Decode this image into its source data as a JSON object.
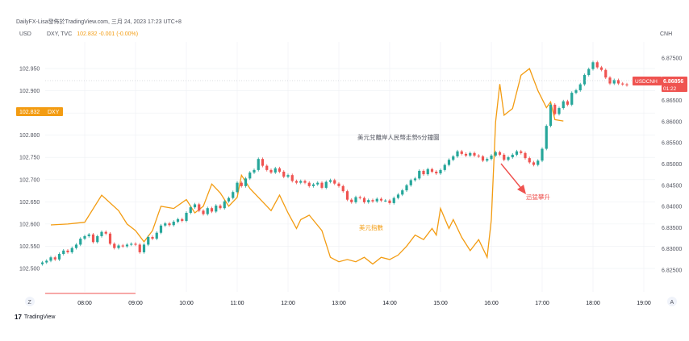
{
  "header": {
    "source_text": "DailyFX-Lisa發佈於TradingView.com, 三月 24, 2023 17:23 UTC+8"
  },
  "left_axis_unit": "USD",
  "right_axis_unit": "CNH",
  "legend": {
    "symbol": "DXY, TVC",
    "value_text": "102.832 -0.001 (-0.00%)"
  },
  "left_price_tag": {
    "value": "102.832",
    "label": "DXY",
    "color": "#f39c12"
  },
  "right_price_tag": {
    "label": "USDCNH",
    "value": "6.86856",
    "countdown": "01:22",
    "color": "#ef5350"
  },
  "annotations": {
    "chart_title": "美元兌離岸人民幣走勢5分鐘圖",
    "dxy_label": "美元指數",
    "surge_label": "迅猛攀升"
  },
  "bottom_left_button": "Z",
  "bottom_right_button": "A",
  "footer": {
    "logo": "17",
    "brand": "TradingView"
  },
  "colors": {
    "up": "#26a69a",
    "down": "#ef5350",
    "dxy_line": "#f39c12",
    "grid": "#eef0f3"
  },
  "chart_data": {
    "type": "line",
    "x_ticks": [
      "08:00",
      "09:00",
      "10:00",
      "11:00",
      "12:00",
      "13:00",
      "14:00",
      "15:00",
      "16:00",
      "17:00",
      "18:00",
      "19:00"
    ],
    "left_axis": {
      "label": "USD",
      "ticks": [
        "102.950",
        "102.900",
        "102.850",
        "102.800",
        "102.750",
        "102.700",
        "102.650",
        "102.600",
        "102.550",
        "102.500"
      ],
      "range": [
        102.46,
        103.01
      ]
    },
    "right_axis": {
      "label": "CNH",
      "ticks": [
        "6.87500",
        "6.87000",
        "6.86500",
        "6.86000",
        "6.85500",
        "6.85000",
        "6.84500",
        "6.84000",
        "6.83500",
        "6.83000",
        "6.82500"
      ],
      "range": [
        6.8212,
        6.8788
      ]
    },
    "series": [
      {
        "name": "DXY",
        "axis": "left",
        "x": [
          "07:20",
          "07:40",
          "08:00",
          "08:20",
          "08:40",
          "08:50",
          "09:00",
          "09:10",
          "09:20",
          "09:30",
          "09:45",
          "10:00",
          "10:10",
          "10:20",
          "10:30",
          "10:40",
          "10:50",
          "11:00",
          "11:05",
          "11:15",
          "11:30",
          "11:40",
          "11:50",
          "12:00",
          "12:10",
          "12:15",
          "12:25",
          "12:40",
          "12:50",
          "13:00",
          "13:10",
          "13:20",
          "13:30",
          "13:40",
          "13:50",
          "14:00",
          "14:10",
          "14:20",
          "14:30",
          "14:40",
          "14:50",
          "14:55",
          "15:00",
          "15:10",
          "15:15",
          "15:25",
          "15:35",
          "15:45",
          "15:55",
          "16:00",
          "16:05",
          "16:10",
          "16:15",
          "16:25",
          "16:35",
          "16:45",
          "16:55",
          "17:05",
          "17:10",
          "17:15",
          "17:25"
        ],
        "values": [
          102.598,
          102.6,
          102.604,
          102.665,
          102.63,
          102.6,
          102.585,
          102.56,
          102.585,
          102.64,
          102.635,
          102.655,
          102.625,
          102.64,
          102.69,
          102.67,
          102.64,
          102.66,
          102.71,
          102.68,
          102.65,
          102.63,
          102.665,
          102.625,
          102.59,
          102.61,
          102.62,
          102.585,
          102.525,
          102.515,
          102.52,
          102.515,
          102.525,
          102.51,
          102.525,
          102.52,
          102.53,
          102.55,
          102.575,
          102.565,
          102.59,
          102.575,
          102.635,
          102.59,
          102.61,
          102.57,
          102.54,
          102.565,
          102.525,
          102.61,
          102.83,
          102.915,
          102.845,
          102.86,
          102.935,
          102.95,
          102.9,
          102.862,
          102.875,
          102.835,
          102.832
        ]
      },
      {
        "name": "USDCNH",
        "axis": "right",
        "type": "candlestick",
        "x_start": "07:10",
        "interval_minutes": 5,
        "closes": [
          6.8268,
          6.8272,
          6.828,
          6.8275,
          6.8288,
          6.8296,
          6.8292,
          6.8302,
          6.831,
          6.8324,
          6.833,
          6.8334,
          6.8316,
          6.833,
          6.834,
          6.8336,
          6.8312,
          6.8302,
          6.8308,
          6.8306,
          6.831,
          6.8312,
          6.831,
          6.8292,
          6.831,
          6.8328,
          6.8324,
          6.8338,
          6.8355,
          6.836,
          6.8356,
          6.8364,
          6.837,
          6.8366,
          6.8385,
          6.8398,
          6.8405,
          6.839,
          6.8382,
          6.8396,
          6.8388,
          6.8402,
          6.8396,
          6.8412,
          6.842,
          6.8434,
          6.8456,
          6.8448,
          6.8466,
          6.848,
          6.8486,
          6.8512,
          6.8496,
          6.8486,
          6.848,
          6.849,
          6.8482,
          6.847,
          6.8474,
          6.846,
          6.8456,
          6.846,
          6.8456,
          6.8448,
          6.8452,
          6.8456,
          6.8444,
          6.8458,
          6.8462,
          6.8454,
          6.8448,
          6.8436,
          6.8416,
          6.841,
          6.8422,
          6.842,
          6.841,
          6.8415,
          6.8412,
          6.8418,
          6.8414,
          6.8414,
          6.8408,
          6.842,
          6.8428,
          6.8438,
          6.845,
          6.8462,
          6.8466,
          6.8484,
          6.8476,
          6.8488,
          6.8482,
          6.8478,
          6.8486,
          6.8498,
          6.851,
          6.8518,
          6.853,
          6.8524,
          6.852,
          6.8526,
          6.852,
          6.8518,
          6.8508,
          6.8512,
          6.852,
          6.8528,
          6.8522,
          6.851,
          6.8516,
          6.8522,
          6.853,
          6.8526,
          6.8514,
          6.8504,
          6.8498,
          6.8508,
          6.8536,
          6.859,
          6.864,
          6.8618,
          6.8632,
          6.8648,
          6.864,
          6.8668,
          6.8674,
          6.8688,
          6.871,
          6.8724,
          6.874,
          6.8728,
          6.8722,
          6.8704,
          6.869,
          6.8698,
          6.869,
          6.8688,
          6.8686
        ]
      }
    ],
    "grid": true
  }
}
